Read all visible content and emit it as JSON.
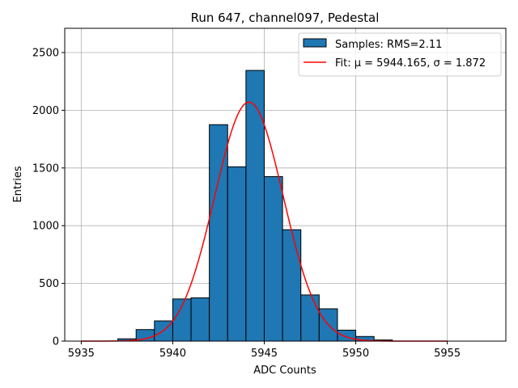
{
  "chart_data": {
    "type": "bar",
    "title": "Run 647, channel097, Pedestal",
    "xlabel": "ADC Counts",
    "ylabel": "Entries",
    "xlim": [
      5934.1,
      5958.2
    ],
    "ylim": [
      0,
      2710
    ],
    "xticks": [
      5935,
      5940,
      5945,
      5950,
      5955
    ],
    "yticks": [
      0,
      500,
      1000,
      1500,
      2000,
      2500
    ],
    "grid": true,
    "legend_position": "top-right",
    "histogram": {
      "name": "Samples: RMS=2.11",
      "color": "#1f77b4",
      "edgecolor": "#000000",
      "bin_width": 1,
      "bins": [
        {
          "x0": 5937,
          "value": 20
        },
        {
          "x0": 5938,
          "value": 100
        },
        {
          "x0": 5939,
          "value": 175
        },
        {
          "x0": 5940,
          "value": 365
        },
        {
          "x0": 5941,
          "value": 375
        },
        {
          "x0": 5942,
          "value": 1875
        },
        {
          "x0": 5943,
          "value": 1510
        },
        {
          "x0": 5944,
          "value": 2345
        },
        {
          "x0": 5945,
          "value": 1425
        },
        {
          "x0": 5946,
          "value": 965
        },
        {
          "x0": 5947,
          "value": 400
        },
        {
          "x0": 5948,
          "value": 280
        },
        {
          "x0": 5949,
          "value": 95
        },
        {
          "x0": 5950,
          "value": 40
        },
        {
          "x0": 5951,
          "value": 10
        }
      ]
    },
    "fit": {
      "name": "Fit: μ = 5944.165, σ = 1.872",
      "color": "#ff0000",
      "mu": 5944.165,
      "sigma": 1.872,
      "amplitude": 2070,
      "x_range": [
        5935,
        5955
      ]
    }
  }
}
